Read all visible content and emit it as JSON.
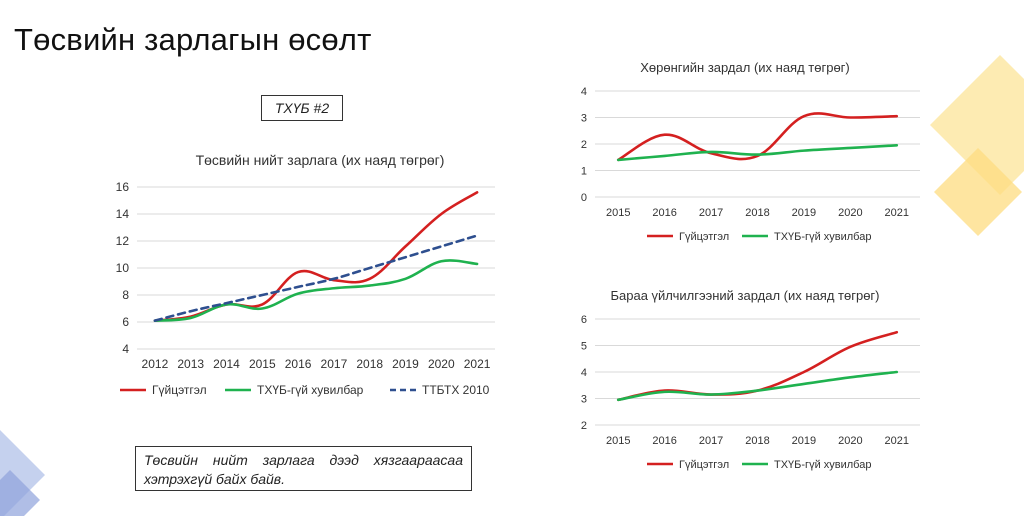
{
  "slide": {
    "title": "Төсвийн зарлагын өсөлт",
    "tag": "ТХҮБ #2",
    "note": "Төсвийн нийт зарлага дээд хязгаараасаа хэтрэхгүй байх байв."
  },
  "colors": {
    "actual": "#d42020",
    "tkhub": "#1fb24f",
    "ttbtkh": "#2e4f8f",
    "grid": "#d9d9d9",
    "deco_yellow": "#fde7a4",
    "deco_blue": "#b7c6ea"
  },
  "chart_data": [
    {
      "type": "line",
      "title": "Төсвийн нийт зарлага (их наяд төгрөг)",
      "categories": [
        "2012",
        "2013",
        "2014",
        "2015",
        "2016",
        "2017",
        "2018",
        "2019",
        "2020",
        "2021"
      ],
      "ylim": [
        4,
        16
      ],
      "yticks": [
        4,
        6,
        8,
        10,
        12,
        14,
        16
      ],
      "grid": true,
      "legend_position": "bottom",
      "series": [
        {
          "name": "Гүйцэтгэл",
          "color": "#d42020",
          "dashed": false,
          "values": [
            6.1,
            6.4,
            7.3,
            7.3,
            9.7,
            9.1,
            9.2,
            11.6,
            14.0,
            15.6
          ]
        },
        {
          "name": "ТХҮБ-гүй хувилбар",
          "color": "#1fb24f",
          "dashed": false,
          "values": [
            6.1,
            6.3,
            7.3,
            7.0,
            8.1,
            8.5,
            8.7,
            9.2,
            10.5,
            10.3
          ]
        },
        {
          "name": "ТТБТХ 2010",
          "color": "#2e4f8f",
          "dashed": true,
          "values": [
            6.1,
            6.8,
            7.4,
            8.0,
            8.6,
            9.2,
            10.0,
            10.8,
            11.6,
            12.4
          ]
        }
      ]
    },
    {
      "type": "line",
      "title": "Хөрөнгийн зардал (их наяд төгрөг)",
      "categories": [
        "2015",
        "2016",
        "2017",
        "2018",
        "2019",
        "2020",
        "2021"
      ],
      "ylim": [
        0,
        4
      ],
      "yticks": [
        0,
        1,
        2,
        3,
        4
      ],
      "grid": true,
      "legend_position": "bottom",
      "series": [
        {
          "name": "Гүйцэтгэл",
          "color": "#d42020",
          "dashed": false,
          "values": [
            1.4,
            2.35,
            1.65,
            1.55,
            3.05,
            3.0,
            3.05
          ]
        },
        {
          "name": "ТХҮБ-гүй хувилбар",
          "color": "#1fb24f",
          "dashed": false,
          "values": [
            1.4,
            1.55,
            1.7,
            1.6,
            1.75,
            1.85,
            1.95
          ]
        }
      ]
    },
    {
      "type": "line",
      "title": "Бараа үйлчилгээний зардал (их наяд төгрөг)",
      "categories": [
        "2015",
        "2016",
        "2017",
        "2018",
        "2019",
        "2020",
        "2021"
      ],
      "ylim": [
        2,
        6
      ],
      "yticks": [
        2,
        3,
        4,
        5,
        6
      ],
      "grid": true,
      "legend_position": "bottom",
      "series": [
        {
          "name": "Гүйцэтгэл",
          "color": "#d42020",
          "dashed": false,
          "values": [
            2.95,
            3.3,
            3.15,
            3.3,
            4.0,
            4.95,
            5.5
          ]
        },
        {
          "name": "ТХҮБ-гүй хувилбар",
          "color": "#1fb24f",
          "dashed": false,
          "values": [
            2.95,
            3.25,
            3.15,
            3.3,
            3.55,
            3.8,
            4.0
          ]
        }
      ]
    }
  ]
}
